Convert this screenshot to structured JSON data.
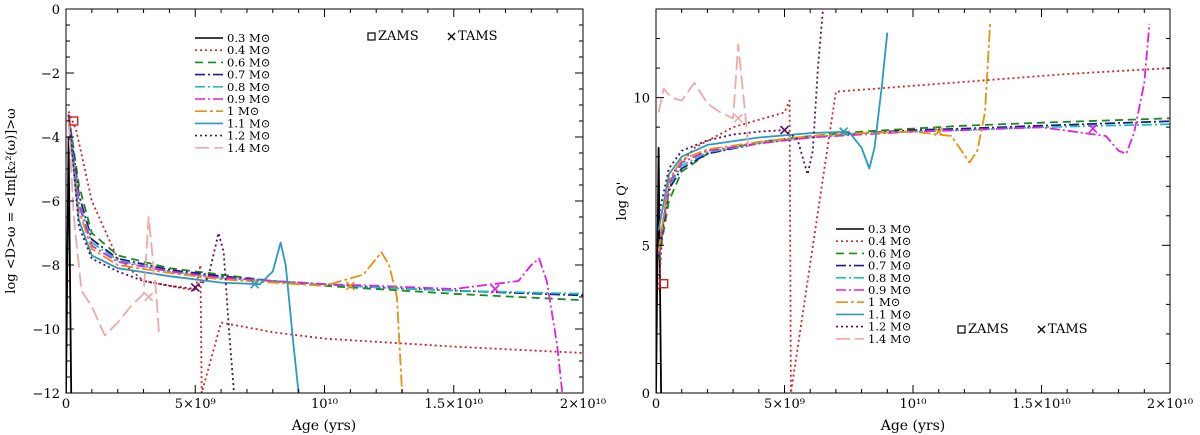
{
  "chart_data": [
    {
      "type": "line",
      "title": "",
      "xlabel": "Age (yrs)",
      "ylabel": "log <D>ω = <Im[k₂²(ω)]>ω",
      "xlim": [
        0,
        20000000000.0
      ],
      "ylim": [
        -12,
        0
      ],
      "x_ticks": [
        0,
        5000000000.0,
        10000000000.0,
        15000000000.0,
        20000000000.0
      ],
      "x_tick_labels": [
        "0",
        "5×10⁹",
        "10¹⁰",
        "1.5×10¹⁰",
        "2×10¹⁰"
      ],
      "y_ticks": [
        -12,
        -10,
        -8,
        -6,
        -4,
        -2,
        0
      ],
      "y_tick_labels": [
        "−12",
        "−10",
        "−8",
        "−6",
        "−4",
        "−2",
        "0"
      ],
      "legend_position": "top-center",
      "marker_legend": [
        {
          "symbol": "square",
          "label": "ZAMS"
        },
        {
          "symbol": "cross",
          "label": "TAMS"
        }
      ],
      "series": [
        {
          "name": "0.3 M⊙",
          "color": "#000000",
          "dash": "",
          "x": [
            0,
            100000000.0,
            200000000.0
          ],
          "y": [
            -12,
            -4.0,
            -12
          ]
        },
        {
          "name": "0.4 M⊙",
          "color": "#d42020",
          "dash": "2,3",
          "x": [
            100000000.0,
            400000000.0,
            1000000000.0,
            2000000000.0,
            3000000000.0,
            5000000000.0,
            5200000000.0,
            5250000000.0,
            6000000000.0,
            8000000000.0,
            10000000000.0,
            12000000000.0,
            15000000000.0,
            20000000000.0
          ],
          "y": [
            -3.2,
            -3.8,
            -6.0,
            -7.8,
            -8.5,
            -8.8,
            -8.0,
            -12,
            -9.8,
            -10.1,
            -10.3,
            -10.4,
            -10.55,
            -10.75
          ]
        },
        {
          "name": "0.6 M⊙",
          "color": "#1a8a1a",
          "dash": "8,5",
          "x": [
            100000000.0,
            500000000.0,
            1000000000.0,
            2000000000.0,
            4000000000.0,
            6000000000.0,
            8000000000.0,
            10000000000.0,
            12000000000.0,
            15000000000.0,
            20000000000.0
          ],
          "y": [
            -3.3,
            -5.5,
            -7.0,
            -7.7,
            -8.1,
            -8.3,
            -8.5,
            -8.65,
            -8.75,
            -8.9,
            -9.1
          ]
        },
        {
          "name": "0.7 M⊙",
          "color": "#1a1a8a",
          "dash": "10,3,2,3",
          "x": [
            100000000.0,
            500000000.0,
            1000000000.0,
            2000000000.0,
            4000000000.0,
            6000000000.0,
            8000000000.0,
            10000000000.0,
            12000000000.0,
            15000000000.0,
            20000000000.0
          ],
          "y": [
            -3.3,
            -5.8,
            -7.2,
            -7.8,
            -8.15,
            -8.35,
            -8.5,
            -8.6,
            -8.7,
            -8.8,
            -8.95
          ]
        },
        {
          "name": "0.8 M⊙",
          "color": "#20c0c0",
          "dash": "10,3,2,3",
          "x": [
            100000000.0,
            500000000.0,
            1000000000.0,
            2000000000.0,
            4000000000.0,
            6000000000.0,
            8000000000.0,
            10000000000.0,
            12000000000.0,
            15000000000.0,
            20000000000.0
          ],
          "y": [
            -3.4,
            -6.0,
            -7.3,
            -7.85,
            -8.2,
            -8.4,
            -8.5,
            -8.6,
            -8.7,
            -8.8,
            -8.9
          ]
        },
        {
          "name": "0.9 M⊙",
          "color": "#e020e0",
          "dash": "10,3,2,3",
          "x": [
            100000000.0,
            500000000.0,
            1000000000.0,
            2000000000.0,
            4000000000.0,
            6000000000.0,
            8000000000.0,
            10000000000.0,
            12000000000.0,
            15000000000.0,
            17500000000.0,
            18000000000.0,
            18300000000.0,
            18600000000.0,
            19000000000.0,
            19200000000.0
          ],
          "y": [
            -3.4,
            -6.1,
            -7.4,
            -7.9,
            -8.2,
            -8.4,
            -8.5,
            -8.6,
            -8.65,
            -8.75,
            -8.5,
            -8.0,
            -7.8,
            -8.5,
            -10.5,
            -12
          ]
        },
        {
          "name": "1 M⊙",
          "color": "#e89010",
          "dash": "12,3,3,3",
          "x": [
            100000000.0,
            500000000.0,
            1000000000.0,
            2000000000.0,
            4000000000.0,
            6000000000.0,
            8000000000.0,
            10000000000.0,
            11500000000.0,
            12200000000.0,
            12500000000.0,
            12800000000.0,
            13000000000.0
          ],
          "y": [
            -3.4,
            -6.3,
            -7.5,
            -8.0,
            -8.25,
            -8.45,
            -8.55,
            -8.65,
            -8.3,
            -7.6,
            -8.0,
            -9.0,
            -12
          ]
        },
        {
          "name": "1.1 M⊙",
          "color": "#2a9ac0",
          "dash": "",
          "x": [
            100000000.0,
            500000000.0,
            1000000000.0,
            2000000000.0,
            4000000000.0,
            6000000000.0,
            7500000000.0,
            8000000000.0,
            8300000000.0,
            8500000000.0,
            8800000000.0,
            9000000000.0
          ],
          "y": [
            -3.4,
            -6.6,
            -7.7,
            -8.1,
            -8.35,
            -8.55,
            -8.6,
            -8.2,
            -7.3,
            -8.0,
            -10.5,
            -12
          ]
        },
        {
          "name": "1.2 M⊙",
          "color": "#5a0a5a",
          "dash": "2,3",
          "x": [
            100000000.0,
            500000000.0,
            1000000000.0,
            2000000000.0,
            3000000000.0,
            4000000000.0,
            5000000000.0,
            5500000000.0,
            5900000000.0,
            6100000000.0,
            6300000000.0,
            6500000000.0
          ],
          "y": [
            -3.3,
            -6.8,
            -7.8,
            -8.2,
            -8.5,
            -8.65,
            -8.75,
            -8.4,
            -7.0,
            -7.6,
            -10.0,
            -12
          ]
        },
        {
          "name": "1.4 M⊙",
          "color": "#f0a8a8",
          "dash": "14,5",
          "x": [
            100000000.0,
            300000000.0,
            600000000.0,
            1000000000.0,
            1500000000.0,
            2000000000.0,
            2500000000.0,
            3000000000.0,
            3200000000.0,
            3500000000.0,
            3600000000.0
          ],
          "y": [
            -3.5,
            -6.5,
            -8.8,
            -9.3,
            -10.2,
            -9.8,
            -9.3,
            -8.9,
            -6.5,
            -9.0,
            -10.2
          ]
        }
      ],
      "markers": [
        {
          "type": "square",
          "x": 300000000.0,
          "y": -3.5,
          "color": "#d42020"
        },
        {
          "type": "cross",
          "x": 5000000000.0,
          "y": -8.7,
          "color": "#5a0a5a"
        },
        {
          "type": "cross",
          "x": 7300000000.0,
          "y": -8.6,
          "color": "#2a9ac0"
        },
        {
          "type": "cross",
          "x": 11000000000.0,
          "y": -8.65,
          "color": "#e89010"
        },
        {
          "type": "cross",
          "x": 16600000000.0,
          "y": -8.75,
          "color": "#e020e0"
        },
        {
          "type": "cross",
          "x": 3200000000.0,
          "y": -9.0,
          "color": "#f0a8a8"
        }
      ]
    },
    {
      "type": "line",
      "title": "",
      "xlabel": "Age (yrs)",
      "ylabel": "log Q'",
      "xlim": [
        0,
        20000000000.0
      ],
      "ylim": [
        0,
        13
      ],
      "x_ticks": [
        0,
        5000000000.0,
        10000000000.0,
        15000000000.0,
        20000000000.0
      ],
      "x_tick_labels": [
        "0",
        "5×10⁹",
        "10¹⁰",
        "1.5×10¹⁰",
        "2×10¹⁰"
      ],
      "y_ticks": [
        0,
        5,
        10
      ],
      "y_tick_labels": [
        "0",
        "5",
        "10"
      ],
      "legend_position": "bottom-left",
      "marker_legend": [
        {
          "symbol": "square",
          "label": "ZAMS"
        },
        {
          "symbol": "cross",
          "label": "TAMS"
        }
      ],
      "series": [
        {
          "name": "0.3 M⊙",
          "color": "#000000",
          "dash": "",
          "x": [
            0,
            100000000.0,
            200000000.0
          ],
          "y": [
            0,
            8.3,
            0
          ]
        },
        {
          "name": "0.4 M⊙",
          "color": "#d42020",
          "dash": "2,3",
          "x": [
            100000000.0,
            300000000.0,
            700000000.0,
            1500000000.0,
            3000000000.0,
            5000000000.0,
            5200000000.0,
            5250000000.0,
            7000000000.0,
            10000000000.0,
            13000000000.0,
            16000000000.0,
            20000000000.0
          ],
          "y": [
            3.5,
            6.0,
            7.5,
            8.3,
            9.0,
            9.5,
            9.9,
            0,
            10.2,
            10.4,
            10.6,
            10.8,
            11.0
          ]
        },
        {
          "name": "0.6 M⊙",
          "color": "#1a8a1a",
          "dash": "8,5",
          "x": [
            100000000.0,
            500000000.0,
            1000000000.0,
            2000000000.0,
            4000000000.0,
            6000000000.0,
            8000000000.0,
            10000000000.0,
            12000000000.0,
            15000000000.0,
            20000000000.0
          ],
          "y": [
            4.5,
            6.5,
            7.5,
            8.1,
            8.5,
            8.7,
            8.85,
            8.95,
            9.05,
            9.15,
            9.3
          ]
        },
        {
          "name": "0.7 M⊙",
          "color": "#1a1a8a",
          "dash": "10,3,2,3",
          "x": [
            100000000.0,
            500000000.0,
            1000000000.0,
            2000000000.0,
            4000000000.0,
            6000000000.0,
            8000000000.0,
            10000000000.0,
            12000000000.0,
            15000000000.0,
            20000000000.0
          ],
          "y": [
            4.6,
            6.9,
            7.6,
            8.1,
            8.45,
            8.65,
            8.8,
            8.9,
            8.95,
            9.05,
            9.2
          ]
        },
        {
          "name": "0.8 M⊙",
          "color": "#20c0c0",
          "dash": "10,3,2,3",
          "x": [
            100000000.0,
            500000000.0,
            1000000000.0,
            2000000000.0,
            4000000000.0,
            6000000000.0,
            8000000000.0,
            10000000000.0,
            12000000000.0,
            15000000000.0,
            20000000000.0
          ],
          "y": [
            4.7,
            7.0,
            7.7,
            8.15,
            8.45,
            8.65,
            8.8,
            8.85,
            8.9,
            9.0,
            9.1
          ]
        },
        {
          "name": "0.9 M⊙",
          "color": "#e020e0",
          "dash": "10,3,2,3",
          "x": [
            100000000.0,
            500000000.0,
            1000000000.0,
            2000000000.0,
            4000000000.0,
            6000000000.0,
            8000000000.0,
            10000000000.0,
            12000000000.0,
            15000000000.0,
            17500000000.0,
            18000000000.0,
            18300000000.0,
            18600000000.0,
            19000000000.0,
            19200000000.0
          ],
          "y": [
            4.7,
            7.1,
            7.8,
            8.2,
            8.45,
            8.65,
            8.75,
            8.85,
            8.9,
            9.0,
            8.7,
            8.2,
            8.1,
            8.8,
            10.5,
            12.5
          ]
        },
        {
          "name": "1 M⊙",
          "color": "#e89010",
          "dash": "12,3,3,3",
          "x": [
            100000000.0,
            500000000.0,
            1000000000.0,
            2000000000.0,
            4000000000.0,
            6000000000.0,
            8000000000.0,
            10000000000.0,
            11500000000.0,
            12200000000.0,
            12500000000.0,
            12800000000.0,
            13000000000.0
          ],
          "y": [
            4.8,
            7.2,
            7.9,
            8.25,
            8.5,
            8.7,
            8.8,
            8.85,
            8.7,
            7.8,
            8.2,
            9.5,
            12.5
          ]
        },
        {
          "name": "1.1 M⊙",
          "color": "#2a9ac0",
          "dash": "",
          "x": [
            100000000.0,
            500000000.0,
            1000000000.0,
            2000000000.0,
            4000000000.0,
            6000000000.0,
            7500000000.0,
            8000000000.0,
            8300000000.0,
            8500000000.0,
            8800000000.0,
            9000000000.0
          ],
          "y": [
            5.5,
            7.4,
            8.0,
            8.4,
            8.65,
            8.8,
            8.85,
            8.3,
            7.6,
            8.3,
            10.5,
            12.2
          ]
        },
        {
          "name": "1.2 M⊙",
          "color": "#5a0a5a",
          "dash": "2,3",
          "x": [
            100000000.0,
            500000000.0,
            1000000000.0,
            2000000000.0,
            3000000000.0,
            4000000000.0,
            5000000000.0,
            5500000000.0,
            5900000000.0,
            6100000000.0,
            6300000000.0,
            6500000000.0
          ],
          "y": [
            6.0,
            7.6,
            8.2,
            8.55,
            8.75,
            8.85,
            8.9,
            8.6,
            7.4,
            8.2,
            11.0,
            13.0
          ]
        },
        {
          "name": "1.4 M⊙",
          "color": "#f0a8a8",
          "dash": "14,5",
          "x": [
            100000000.0,
            300000000.0,
            600000000.0,
            1000000000.0,
            1500000000.0,
            2000000000.0,
            2500000000.0,
            3000000000.0,
            3200000000.0,
            3500000000.0,
            3600000000.0
          ],
          "y": [
            9.5,
            10.3,
            10.0,
            9.9,
            10.5,
            9.8,
            9.5,
            9.3,
            11.8,
            9.2,
            8.2
          ]
        }
      ],
      "markers": [
        {
          "type": "square",
          "x": 300000000.0,
          "y": 3.7,
          "color": "#d42020"
        },
        {
          "type": "cross",
          "x": 5000000000.0,
          "y": 8.9,
          "color": "#5a0a5a"
        },
        {
          "type": "cross",
          "x": 7300000000.0,
          "y": 8.85,
          "color": "#2a9ac0"
        },
        {
          "type": "cross",
          "x": 11000000000.0,
          "y": 8.85,
          "color": "#e89010"
        },
        {
          "type": "cross",
          "x": 17000000000.0,
          "y": 8.95,
          "color": "#e020e0"
        },
        {
          "type": "cross",
          "x": 3200000000.0,
          "y": 9.3,
          "color": "#f0a8a8"
        }
      ]
    }
  ]
}
